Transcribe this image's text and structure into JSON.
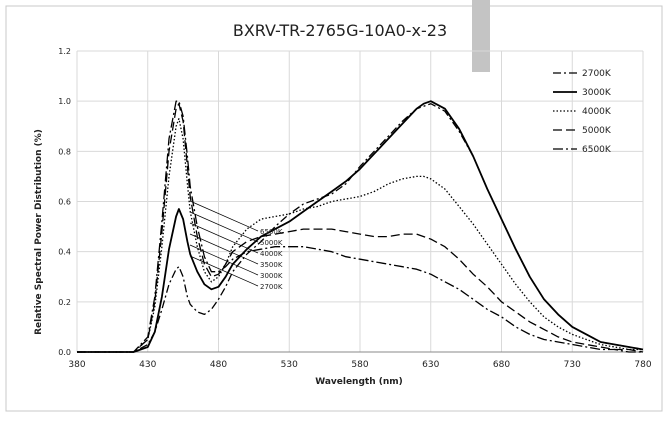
{
  "chart_data": {
    "type": "line",
    "title": "BXRV-TR-2765G-10A0-x-23",
    "xlabel": "Wavelength (nm)",
    "ylabel": "Relative Spectral Power Distribution (%)",
    "xlim": [
      380,
      780
    ],
    "ylim": [
      0,
      1.2
    ],
    "x_ticks": [
      380,
      430,
      480,
      530,
      580,
      630,
      680,
      730,
      780
    ],
    "y_ticks": [
      0.0,
      0.2,
      0.4,
      0.6,
      0.8,
      1.0,
      1.2
    ],
    "y_tick_labels": [
      "0.0",
      "0.2",
      "0.4",
      "0.6",
      "0.8",
      "1.0",
      "1.2"
    ],
    "grid": "vertical and horizontal",
    "legend_position": "top-right",
    "x": [
      380,
      400,
      420,
      430,
      435,
      440,
      445,
      450,
      452,
      455,
      458,
      460,
      465,
      470,
      475,
      480,
      485,
      490,
      500,
      510,
      520,
      530,
      540,
      550,
      560,
      570,
      580,
      590,
      600,
      610,
      620,
      625,
      630,
      640,
      650,
      660,
      670,
      680,
      690,
      700,
      710,
      720,
      730,
      740,
      750,
      760,
      770,
      780
    ],
    "series": [
      {
        "name": "2700K",
        "dash": "8,3,2,3",
        "values": [
          0,
          0,
          0,
          0.03,
          0.08,
          0.17,
          0.27,
          0.33,
          0.34,
          0.3,
          0.22,
          0.19,
          0.16,
          0.15,
          0.17,
          0.21,
          0.26,
          0.32,
          0.39,
          0.44,
          0.5,
          0.55,
          0.59,
          0.61,
          0.63,
          0.67,
          0.74,
          0.8,
          0.86,
          0.92,
          0.97,
          0.98,
          0.99,
          0.96,
          0.88,
          0.78,
          0.65,
          0.53,
          0.41,
          0.3,
          0.21,
          0.15,
          0.1,
          0.07,
          0.04,
          0.03,
          0.02,
          0.01
        ]
      },
      {
        "name": "3000K",
        "dash": "",
        "values": [
          0,
          0,
          0,
          0.02,
          0.08,
          0.22,
          0.41,
          0.54,
          0.57,
          0.53,
          0.44,
          0.39,
          0.32,
          0.27,
          0.25,
          0.26,
          0.3,
          0.35,
          0.41,
          0.46,
          0.49,
          0.52,
          0.56,
          0.6,
          0.64,
          0.68,
          0.73,
          0.79,
          0.85,
          0.91,
          0.97,
          0.99,
          1.0,
          0.97,
          0.89,
          0.78,
          0.65,
          0.53,
          0.41,
          0.3,
          0.21,
          0.15,
          0.1,
          0.07,
          0.04,
          0.03,
          0.02,
          0.01
        ]
      },
      {
        "name": "4000K",
        "dash": "1.5,2",
        "values": [
          0,
          0,
          0,
          0.05,
          0.18,
          0.42,
          0.7,
          0.9,
          0.93,
          0.85,
          0.67,
          0.56,
          0.42,
          0.32,
          0.28,
          0.3,
          0.35,
          0.42,
          0.49,
          0.53,
          0.54,
          0.55,
          0.57,
          0.58,
          0.6,
          0.61,
          0.62,
          0.64,
          0.67,
          0.69,
          0.7,
          0.7,
          0.69,
          0.65,
          0.58,
          0.51,
          0.43,
          0.35,
          0.27,
          0.2,
          0.14,
          0.1,
          0.07,
          0.05,
          0.03,
          0.02,
          0.01,
          0.01
        ]
      },
      {
        "name": "5000K",
        "dash": "9,4",
        "values": [
          0,
          0,
          0,
          0.05,
          0.2,
          0.48,
          0.8,
          0.97,
          0.99,
          0.92,
          0.74,
          0.62,
          0.46,
          0.35,
          0.3,
          0.31,
          0.35,
          0.4,
          0.44,
          0.46,
          0.47,
          0.48,
          0.49,
          0.49,
          0.49,
          0.48,
          0.47,
          0.46,
          0.46,
          0.47,
          0.47,
          0.46,
          0.45,
          0.42,
          0.37,
          0.31,
          0.26,
          0.2,
          0.16,
          0.12,
          0.09,
          0.06,
          0.04,
          0.03,
          0.02,
          0.01,
          0.01,
          0
        ]
      },
      {
        "name": "6500K",
        "dash": "10,3,2,3",
        "values": [
          0,
          0,
          0,
          0.06,
          0.22,
          0.52,
          0.85,
          1.0,
          1.0,
          0.94,
          0.78,
          0.66,
          0.5,
          0.38,
          0.32,
          0.32,
          0.34,
          0.37,
          0.4,
          0.41,
          0.42,
          0.42,
          0.42,
          0.41,
          0.4,
          0.38,
          0.37,
          0.36,
          0.35,
          0.34,
          0.33,
          0.32,
          0.31,
          0.28,
          0.25,
          0.21,
          0.17,
          0.14,
          0.1,
          0.07,
          0.05,
          0.04,
          0.03,
          0.02,
          0.01,
          0.01,
          0,
          0
        ]
      }
    ],
    "annotations": [
      "6500K",
      "5000K",
      "4000K",
      "3500K",
      "3000K",
      "2700K"
    ]
  }
}
